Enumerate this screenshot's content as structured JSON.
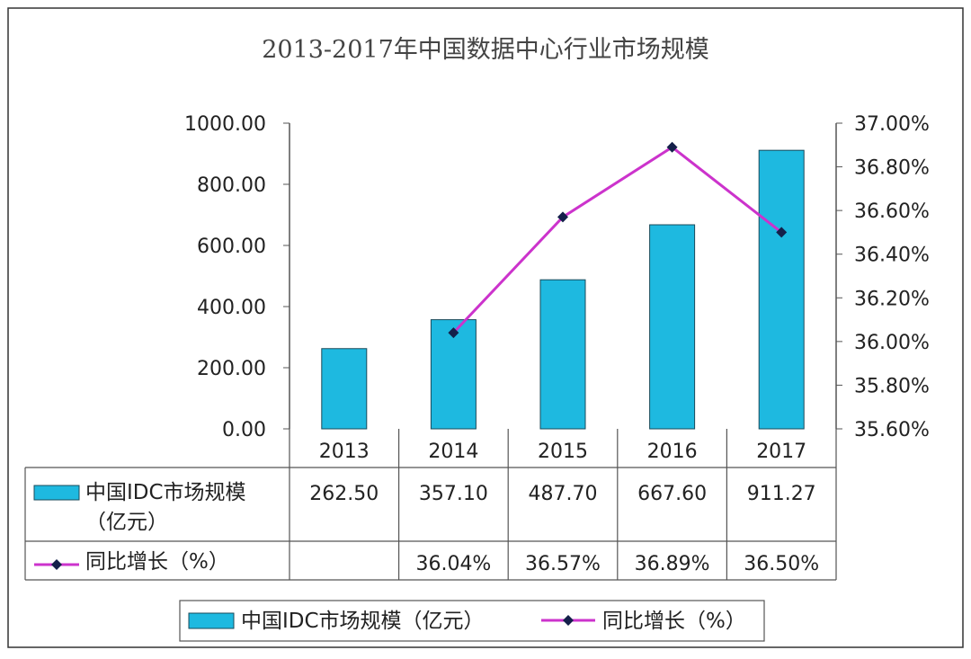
{
  "chart_data": {
    "type": "bar+line",
    "title": "2013-2017年中国数据中心行业市场规模",
    "categories": [
      "2013",
      "2014",
      "2015",
      "2016",
      "2017"
    ],
    "series": [
      {
        "name": "中国IDC市场规模（亿元）",
        "table_label": [
          "中国IDC市场规模",
          "（亿元）"
        ],
        "type": "bar",
        "axis": "left",
        "color": "#1EB9E0",
        "values": [
          262.5,
          357.1,
          487.7,
          667.6,
          911.27
        ],
        "labels": [
          "262.50",
          "357.10",
          "487.70",
          "667.60",
          "911.27"
        ]
      },
      {
        "name": "同比增长（%）",
        "table_label": [
          "同比增长（%）"
        ],
        "type": "line",
        "axis": "right",
        "color": "#CC33CC",
        "marker_color": "#14204A",
        "values": [
          null,
          36.04,
          36.57,
          36.89,
          36.5
        ],
        "labels": [
          "",
          "36.04%",
          "36.57%",
          "36.89%",
          "36.50%"
        ]
      }
    ],
    "left_axis": {
      "ylim": [
        0,
        1000
      ],
      "ticks": [
        "0.00",
        "200.00",
        "400.00",
        "600.00",
        "800.00",
        "1000.00"
      ]
    },
    "right_axis": {
      "ylim": [
        35.6,
        37.0
      ],
      "ticks": [
        "35.60%",
        "35.80%",
        "36.00%",
        "36.20%",
        "36.40%",
        "36.60%",
        "36.80%",
        "37.00%"
      ]
    },
    "grid": false,
    "data_table": true,
    "legend": "bottom"
  }
}
